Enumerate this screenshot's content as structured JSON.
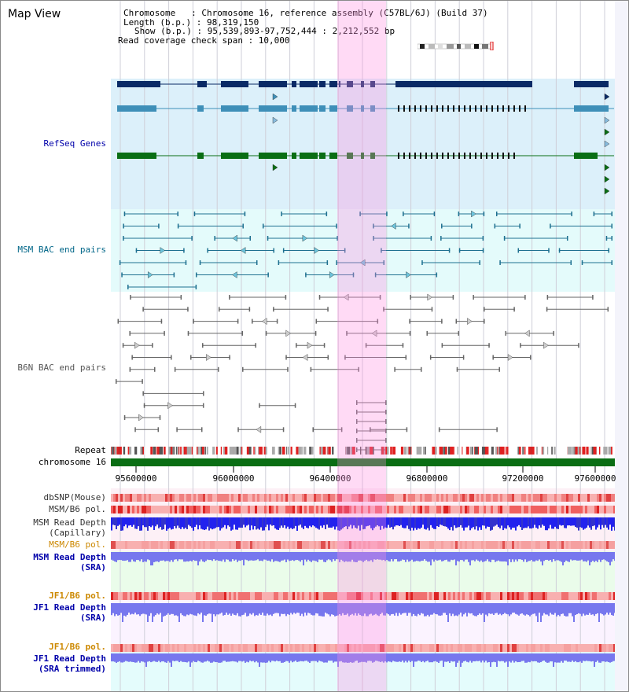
{
  "header": {
    "title": "Map View",
    "info_lines": [
      "Chromosome   : Chromosome 16, reference assembly (C57BL/6J) (Build 37)",
      "Length (b.p.) : 98,319,150",
      "Show (b.p.) : 95,539,893-97,752,444 : 2,212,552 bp",
      "Read coverage check span : 10,000"
    ]
  },
  "tracks": {
    "refseq": {
      "label": "RefSeq Genes",
      "color": "#0000aa"
    },
    "msm_bac": {
      "label": "MSM BAC end pairs",
      "color": "#006688"
    },
    "b6n_bac": {
      "label": "B6N BAC end pairs",
      "color": "#555555"
    },
    "repeat": {
      "label": "Repeat"
    },
    "chrom": {
      "label": "chromosome 16"
    },
    "dbsnp": {
      "label": "dbSNP(Mouse)"
    },
    "msm_b6_pol_1": {
      "label": "MSM/B6 pol."
    },
    "msm_depth_cap": {
      "label_1": "MSM Read Depth",
      "label_2": "(Capillary)"
    },
    "msm_b6_pol_2": {
      "label": "MSM/B6 pol.",
      "color": "#cc8800"
    },
    "msm_depth_sra": {
      "label_1": "MSM Read Depth",
      "label_2": "(SRA)",
      "color": "#0000aa"
    },
    "jf1_b6_pol_1": {
      "label": "JF1/B6 pol.",
      "color": "#cc8800"
    },
    "jf1_depth_sra": {
      "label_1": "JF1 Read Depth",
      "label_2": "(SRA)",
      "color": "#0000aa"
    },
    "jf1_b6_pol_2": {
      "label": "JF1/B6 pol.",
      "color": "#cc8800"
    },
    "jf1_depth_trim": {
      "label_1": "JF1 Read Depth",
      "label_2": "(SRA trimmed)",
      "color": "#0000aa"
    }
  },
  "axis": {
    "start": 95539893,
    "end": 97752444,
    "ticks": [
      "95600000",
      "96000000",
      "96400000",
      "96800000",
      "97200000",
      "97600000"
    ]
  },
  "colors": {
    "refseq_dark": "#0a2a66",
    "refseq_mid": "#3e8fb8",
    "refseq_green": "#0a6e14",
    "chrom_green": "#0a6e14",
    "depth_blue": "#2222ee",
    "depth_light": "#7777ee",
    "pol_red": "#ee4444"
  }
}
